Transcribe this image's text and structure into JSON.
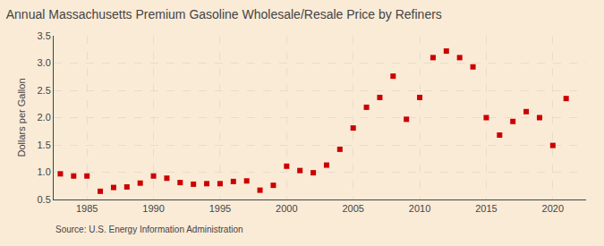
{
  "chart_data": {
    "type": "scatter",
    "title": "Annual Massachusetts Premium Gasoline Wholesale/Resale Price by Refiners",
    "ylabel": "Dollars per Gallon",
    "annotations": [
      "Source: U.S. Energy Information Administration"
    ],
    "x": [
      1983,
      1984,
      1985,
      1986,
      1987,
      1988,
      1989,
      1990,
      1991,
      1992,
      1993,
      1994,
      1995,
      1996,
      1997,
      1998,
      1999,
      2000,
      2001,
      2002,
      2003,
      2004,
      2005,
      2006,
      2007,
      2008,
      2009,
      2010,
      2011,
      2012,
      2013,
      2014,
      2015,
      2016,
      2017,
      2018,
      2019,
      2020,
      2021
    ],
    "values": [
      0.97,
      0.93,
      0.93,
      0.65,
      0.72,
      0.73,
      0.8,
      0.93,
      0.89,
      0.81,
      0.78,
      0.79,
      0.79,
      0.83,
      0.84,
      0.67,
      0.76,
      1.11,
      1.03,
      0.99,
      1.13,
      1.42,
      1.81,
      2.19,
      2.37,
      2.76,
      1.97,
      2.37,
      3.1,
      3.22,
      3.1,
      2.93,
      2.0,
      1.68,
      1.93,
      2.11,
      2.0,
      1.49,
      2.35
    ],
    "color": "#cc0000",
    "marker": "square",
    "xlim": [
      1982.5,
      2022.5
    ],
    "xticks": [
      1985,
      1990,
      1995,
      2000,
      2005,
      2010,
      2015,
      2020
    ],
    "ylim": [
      0.5,
      3.5
    ],
    "yticks": [
      0.5,
      {
        "value": 1.0,
        "label": "1.0"
      },
      1.5,
      {
        "value": 2.0,
        "label": "2.0"
      },
      2.5,
      {
        "value": 3.0,
        "label": "3.0"
      },
      3.5
    ],
    "grid": true
  }
}
